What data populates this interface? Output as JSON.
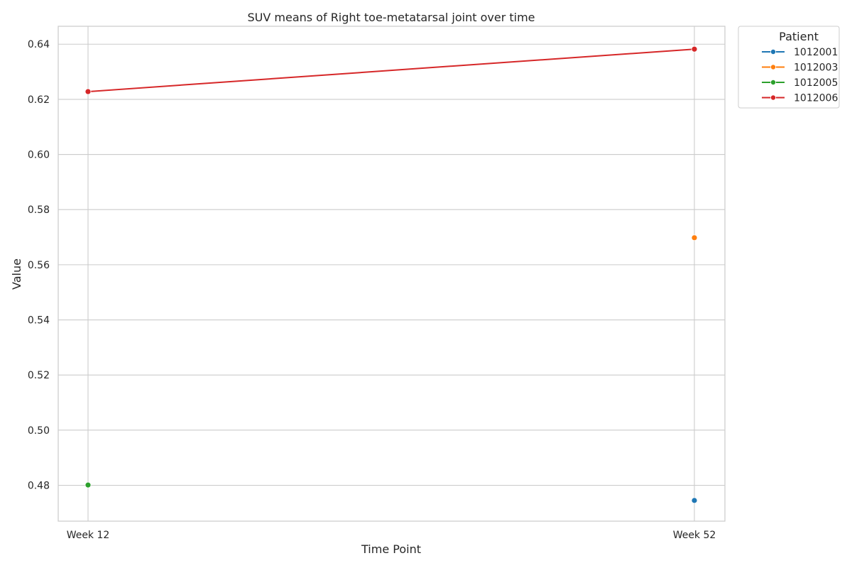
{
  "chart_data": {
    "type": "line",
    "title": "SUV means of Right toe-metatarsal joint over time",
    "xlabel": "Time Point",
    "ylabel": "Value",
    "categories": [
      "Week 12",
      "Week 52"
    ],
    "ylim": [
      0.467,
      0.6465
    ],
    "yticks": [
      0.48,
      0.5,
      0.52,
      0.54,
      0.56,
      0.58,
      0.6,
      0.62,
      0.64
    ],
    "ytick_labels": [
      "0.48",
      "0.50",
      "0.52",
      "0.54",
      "0.56",
      "0.58",
      "0.60",
      "0.62",
      "0.64"
    ],
    "grid": true,
    "legend": {
      "title": "Patient",
      "placement": "outside-top-right"
    },
    "series": [
      {
        "name": "1012001",
        "color": "#1f77b4",
        "values": [
          null,
          0.4745
        ]
      },
      {
        "name": "1012003",
        "color": "#ff7f0e",
        "values": [
          null,
          0.5698
        ]
      },
      {
        "name": "1012005",
        "color": "#2ca02c",
        "values": [
          0.4801,
          null
        ]
      },
      {
        "name": "1012006",
        "color": "#d62728",
        "values": [
          0.6228,
          0.6382
        ]
      }
    ]
  }
}
